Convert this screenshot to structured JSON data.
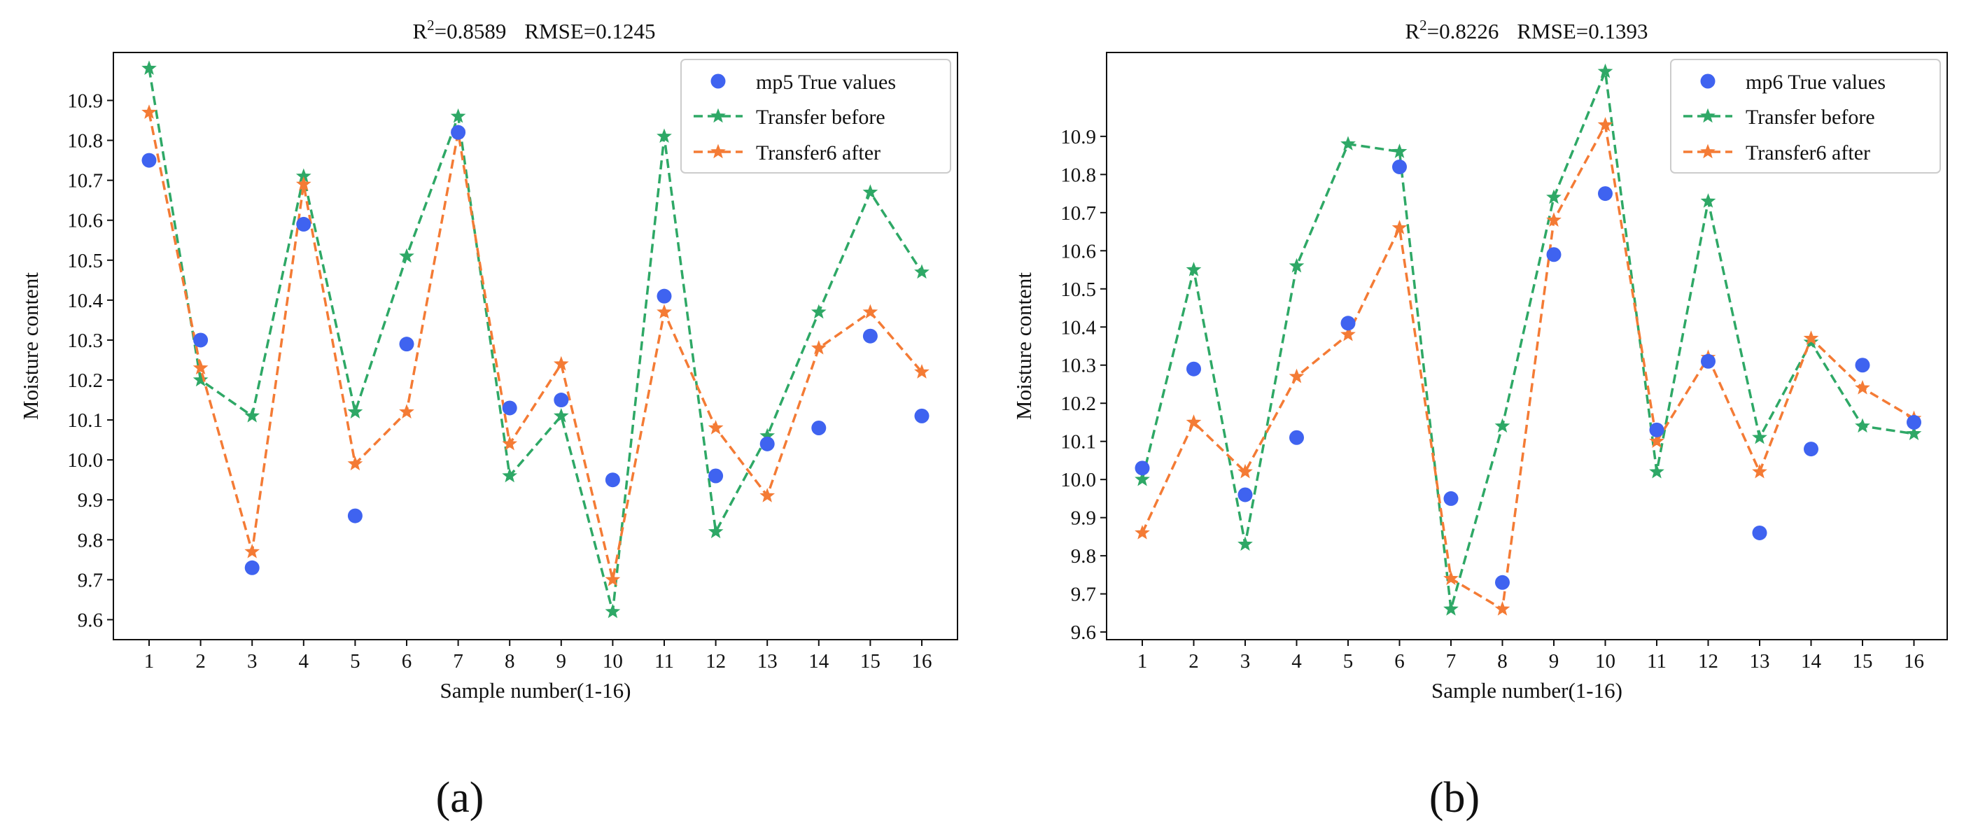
{
  "chart_data": [
    {
      "type": "line",
      "panel_label": "(a)",
      "title_r2_label": "R",
      "title_r2_sup": "2",
      "title_r2_value": "=0.8589",
      "title_rmse": "RMSE=0.1245",
      "xlabel": "Sample number(1-16)",
      "ylabel": "Moisture content",
      "categories": [
        "1",
        "2",
        "3",
        "4",
        "5",
        "6",
        "7",
        "8",
        "9",
        "10",
        "11",
        "12",
        "13",
        "14",
        "15",
        "16"
      ],
      "yticks": [
        "9.6",
        "9.7",
        "9.8",
        "9.9",
        "10.0",
        "10.1",
        "10.2",
        "10.3",
        "10.4",
        "10.5",
        "10.6",
        "10.7",
        "10.8",
        "10.9"
      ],
      "ylim": [
        9.55,
        11.02
      ],
      "legend_position": "top-right",
      "colors": {
        "true": "#3f63f0",
        "before": "#2ea866",
        "after": "#f47b35"
      },
      "series": [
        {
          "name": "mp5 True values",
          "style": "scatter",
          "values": [
            10.75,
            10.3,
            9.73,
            10.59,
            9.86,
            10.29,
            10.82,
            10.13,
            10.15,
            9.95,
            10.41,
            9.96,
            10.04,
            10.08,
            10.31,
            10.11
          ]
        },
        {
          "name": "Transfer before",
          "style": "dashed-star",
          "values": [
            10.98,
            10.2,
            10.11,
            10.71,
            10.12,
            10.51,
            10.86,
            9.96,
            10.11,
            9.62,
            10.81,
            9.82,
            10.06,
            10.37,
            10.67,
            10.47
          ]
        },
        {
          "name": "Transfer6 after",
          "style": "dashed-star",
          "values": [
            10.87,
            10.23,
            9.77,
            10.69,
            9.99,
            10.12,
            10.82,
            10.04,
            10.24,
            9.7,
            10.37,
            10.08,
            9.91,
            10.28,
            10.37,
            10.22
          ]
        }
      ]
    },
    {
      "type": "line",
      "panel_label": "(b)",
      "title_r2_label": "R",
      "title_r2_sup": "2",
      "title_r2_value": "=0.8226",
      "title_rmse": "RMSE=0.1393",
      "xlabel": "Sample number(1-16)",
      "ylabel": "Moisture content",
      "categories": [
        "1",
        "2",
        "3",
        "4",
        "5",
        "6",
        "7",
        "8",
        "9",
        "10",
        "11",
        "12",
        "13",
        "14",
        "15",
        "16"
      ],
      "yticks": [
        "9.6",
        "9.7",
        "9.8",
        "9.9",
        "10.0",
        "10.1",
        "10.2",
        "10.3",
        "10.4",
        "10.5",
        "10.6",
        "10.7",
        "10.8",
        "10.9"
      ],
      "ylim": [
        9.58,
        11.12
      ],
      "legend_position": "top-right",
      "colors": {
        "true": "#3f63f0",
        "before": "#2ea866",
        "after": "#f47b35"
      },
      "series": [
        {
          "name": "mp6 True values",
          "style": "scatter",
          "values": [
            10.03,
            10.29,
            9.96,
            10.11,
            10.41,
            10.82,
            9.95,
            9.73,
            10.59,
            10.75,
            10.13,
            10.31,
            9.86,
            10.08,
            10.3,
            10.15
          ]
        },
        {
          "name": "Transfer before",
          "style": "dashed-star",
          "values": [
            10.0,
            10.55,
            9.83,
            10.56,
            10.88,
            10.86,
            9.66,
            10.14,
            10.74,
            11.07,
            10.02,
            10.73,
            10.11,
            10.36,
            10.14,
            10.12
          ]
        },
        {
          "name": "Transfer6 after",
          "style": "dashed-star",
          "values": [
            9.86,
            10.15,
            10.02,
            10.27,
            10.38,
            10.66,
            9.74,
            9.66,
            10.68,
            10.93,
            10.1,
            10.32,
            10.02,
            10.37,
            10.24,
            10.16
          ]
        }
      ]
    }
  ]
}
